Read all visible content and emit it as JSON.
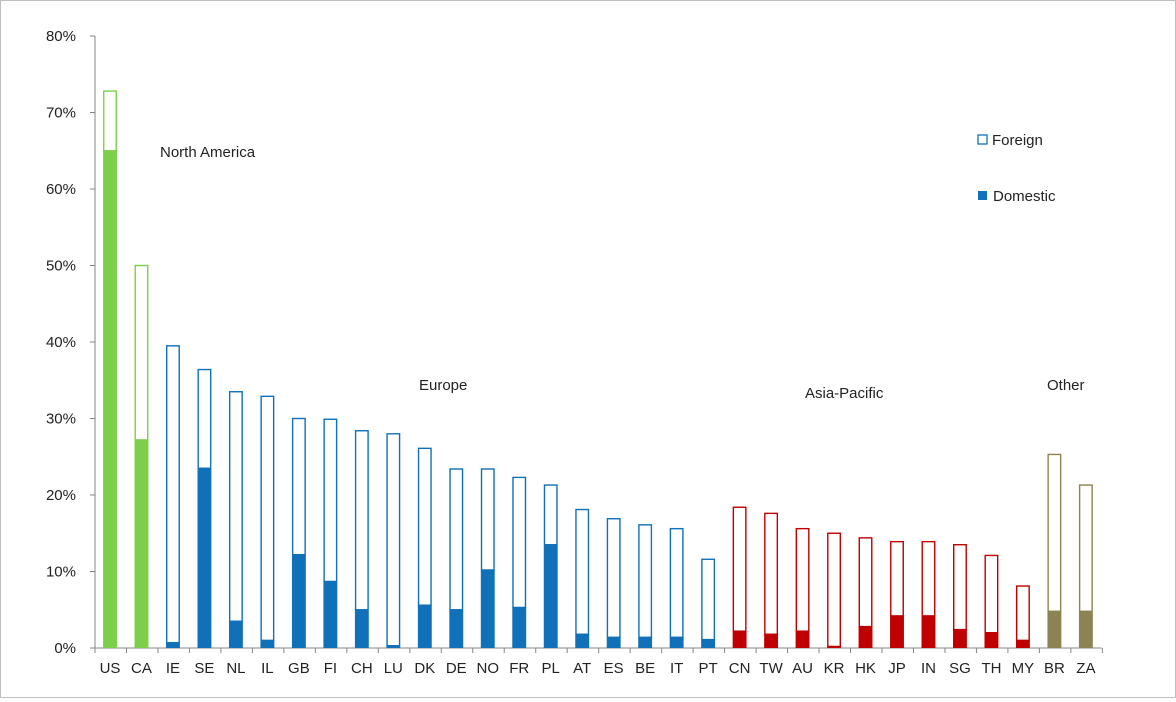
{
  "chart_data": {
    "type": "bar",
    "stacked": true,
    "ylim": [
      0,
      80
    ],
    "y_unit": "%",
    "y_ticks": [
      "0%",
      "10%",
      "20%",
      "30%",
      "40%",
      "50%",
      "60%",
      "70%",
      "80%"
    ],
    "grid": false,
    "legend_position": "top-right",
    "legend": [
      {
        "label": "Foreign",
        "style": "outline"
      },
      {
        "label": "Domestic",
        "style": "filled"
      }
    ],
    "categories": [
      "US",
      "CA",
      "IE",
      "SE",
      "NL",
      "IL",
      "GB",
      "FI",
      "CH",
      "LU",
      "DK",
      "DE",
      "NO",
      "FR",
      "PL",
      "AT",
      "ES",
      "BE",
      "IT",
      "PT",
      "CN",
      "TW",
      "AU",
      "KR",
      "HK",
      "JP",
      "IN",
      "SG",
      "TH",
      "MY",
      "BR",
      "ZA"
    ],
    "series": [
      {
        "name": "Domestic",
        "values": [
          65,
          27.2,
          0.7,
          23.5,
          3.5,
          1,
          12.2,
          8.7,
          5,
          0.3,
          5.6,
          5,
          10.2,
          5.3,
          13.5,
          1.8,
          1.4,
          1.4,
          1.4,
          1.1,
          2.2,
          1.8,
          2.2,
          0.2,
          2.8,
          4.2,
          4.2,
          2.4,
          2,
          1,
          4.8,
          4.8
        ]
      },
      {
        "name": "Foreign",
        "values": [
          7.8,
          22.8,
          38.8,
          12.9,
          30,
          31.9,
          17.8,
          21.2,
          23.4,
          27.7,
          20.5,
          18.4,
          13.2,
          17,
          7.8,
          16.3,
          15.5,
          14.7,
          14.2,
          10.5,
          16.2,
          15.8,
          13.4,
          14.8,
          11.6,
          9.7,
          9.7,
          11.1,
          10.1,
          7.1,
          20.5,
          16.5
        ]
      }
    ],
    "group_of": [
      "North America",
      "North America",
      "Europe",
      "Europe",
      "Europe",
      "Europe",
      "Europe",
      "Europe",
      "Europe",
      "Europe",
      "Europe",
      "Europe",
      "Europe",
      "Europe",
      "Europe",
      "Europe",
      "Europe",
      "Europe",
      "Europe",
      "Europe",
      "Asia-Pacific",
      "Asia-Pacific",
      "Asia-Pacific",
      "Asia-Pacific",
      "Asia-Pacific",
      "Asia-Pacific",
      "Asia-Pacific",
      "Asia-Pacific",
      "Asia-Pacific",
      "Asia-Pacific",
      "Other",
      "Other"
    ],
    "group_labels": [
      {
        "label": "North America",
        "color": "#7ccf4a"
      },
      {
        "label": "Europe",
        "color": "#1070b8"
      },
      {
        "label": "Asia-Pacific",
        "color": "#c00000"
      },
      {
        "label": "Other",
        "color": "#8c8352"
      }
    ]
  }
}
